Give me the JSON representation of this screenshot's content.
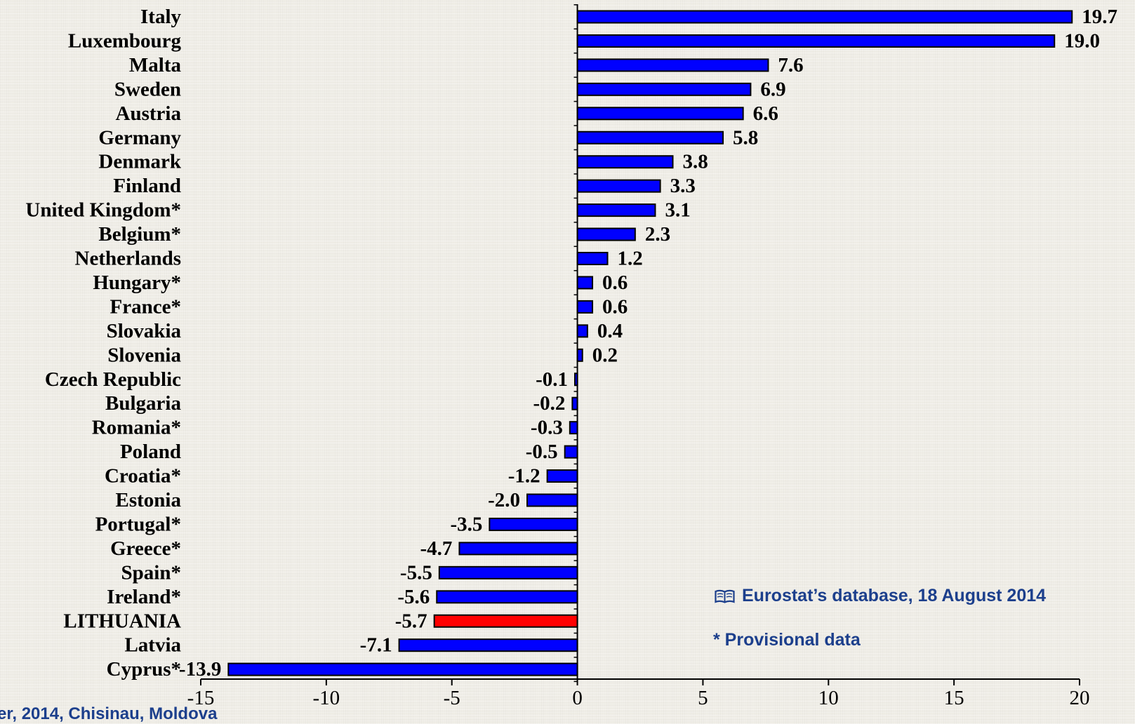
{
  "chart_data": {
    "type": "bar",
    "orientation": "horizontal",
    "categories": [
      "Italy",
      "Luxembourg",
      "Malta",
      "Sweden",
      "Austria",
      "Germany",
      "Denmark",
      "Finland",
      "United Kingdom*",
      "Belgium*",
      "Netherlands",
      "Hungary*",
      "France*",
      "Slovakia",
      "Slovenia",
      "Czech Republic",
      "Bulgaria",
      "Romania*",
      "Poland",
      "Croatia*",
      "Estonia",
      "Portugal*",
      "Greece*",
      "Spain*",
      "Ireland*",
      "LITHUANIA",
      "Latvia",
      "Cyprus*"
    ],
    "values": [
      19.7,
      19.0,
      7.6,
      6.9,
      6.6,
      5.8,
      3.8,
      3.3,
      3.1,
      2.3,
      1.2,
      0.6,
      0.6,
      0.4,
      0.2,
      -0.1,
      -0.2,
      -0.3,
      -0.5,
      -1.2,
      -2.0,
      -3.5,
      -4.7,
      -5.5,
      -5.6,
      -5.7,
      -7.1,
      -13.9
    ],
    "value_labels": [
      "19.7",
      "19.0",
      "7.6",
      "6.9",
      "6.6",
      "5.8",
      "3.8",
      "3.3",
      "3.1",
      "2.3",
      "1.2",
      "0.6",
      "0.6",
      "0.4",
      "0.2",
      "-0.1",
      "-0.2",
      "-0.3",
      "-0.5",
      "-1.2",
      "-2.0",
      "-3.5",
      "-4.7",
      "-5.5",
      "-5.6",
      "-5.7",
      "-7.1",
      "-13.9"
    ],
    "highlight": "LITHUANIA",
    "xlim": [
      -15,
      20
    ],
    "xticks": [
      -15,
      -10,
      -5,
      0,
      5,
      10,
      15,
      20
    ],
    "xtick_labels": [
      "-15",
      "-10",
      "-5",
      "0",
      "5",
      "10",
      "15",
      "20"
    ],
    "title": "",
    "xlabel": "",
    "ylabel": "",
    "grid": false,
    "colors": {
      "bar": "#0000ff",
      "highlight": "#ff0000",
      "outline": "#000000"
    }
  },
  "notes": {
    "source": "Eurostat’s database, 18 August 2014",
    "source_icon": "book-icon",
    "provisional": "* Provisional data"
  },
  "footer": "er, 2014, Chisinau, Moldova",
  "colors": {
    "background": "#efede6",
    "note_text": "#1c3f8c"
  }
}
